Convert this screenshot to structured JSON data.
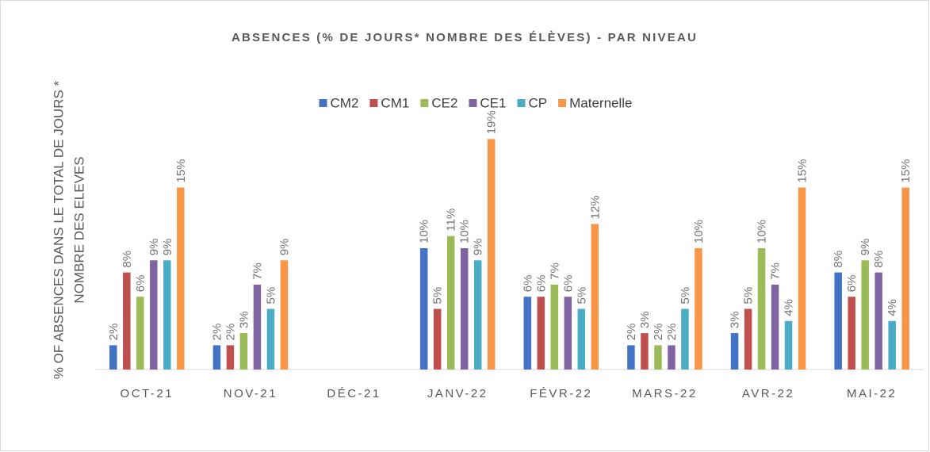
{
  "chart_data": {
    "type": "bar",
    "title": "ABSENCES (% DE JOURS* NOMBRE DES ÉLÈVES) - PAR NIVEAU",
    "y_label": [
      "% OF ABSENCES DANS LE TOTAL DE JOURS *",
      "NOMBRE DES ELEVES"
    ],
    "categories": [
      "OCT-21",
      "NOV-21",
      "DÉC-21",
      "JANV-22",
      "FÉVR-22",
      "MARS-22",
      "AVR-22",
      "MAI-22"
    ],
    "ylim": [
      0,
      20
    ],
    "legend": "top",
    "series": [
      {
        "name": "CM2",
        "color": "#4472c4",
        "values": [
          2,
          2,
          null,
          10,
          6,
          2,
          3,
          8
        ],
        "value_labels": [
          "2%",
          "2%",
          null,
          "10%",
          "6%",
          "2%",
          "3%",
          "8%"
        ]
      },
      {
        "name": "CM1",
        "color": "#c0504d",
        "values": [
          8,
          2,
          null,
          5,
          6,
          3,
          5,
          6
        ],
        "value_labels": [
          "8%",
          "2%",
          null,
          "5%",
          "6%",
          "3%",
          "5%",
          "6%"
        ]
      },
      {
        "name": "CE2",
        "color": "#9bbb59",
        "values": [
          6,
          3,
          null,
          11,
          7,
          2,
          10,
          9
        ],
        "value_labels": [
          "6%",
          "3%",
          null,
          "11%",
          "7%",
          "2%",
          "10%",
          "9%"
        ]
      },
      {
        "name": "CE1",
        "color": "#8064a2",
        "values": [
          9,
          7,
          null,
          10,
          6,
          2,
          7,
          8
        ],
        "value_labels": [
          "9%",
          "7%",
          null,
          "10%",
          "6%",
          "2%",
          "7%",
          "8%"
        ]
      },
      {
        "name": "CP",
        "color": "#4bacc6",
        "values": [
          9,
          5,
          null,
          9,
          5,
          5,
          4,
          4
        ],
        "value_labels": [
          "9%",
          "5%",
          null,
          "9%",
          "5%",
          "5%",
          "4%",
          "4%"
        ]
      },
      {
        "name": "Maternelle",
        "color": "#f79646",
        "values": [
          15,
          9,
          null,
          19,
          12,
          10,
          15,
          15
        ],
        "value_labels": [
          "15%",
          "9%",
          null,
          "19%",
          "12%",
          "10%",
          "15%",
          "15%"
        ]
      }
    ]
  }
}
